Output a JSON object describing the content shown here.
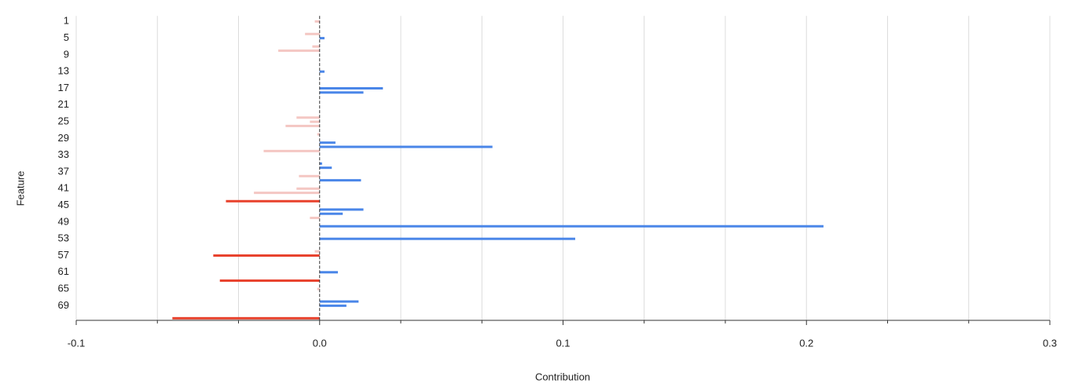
{
  "chart_data": {
    "type": "hbar",
    "x_label": "Contribution",
    "y_label": "Feature",
    "categories": [
      "1",
      null,
      null,
      null,
      "5",
      null,
      null,
      null,
      "9",
      null,
      null,
      null,
      "13",
      null,
      null,
      null,
      "17",
      null,
      null,
      null,
      "21",
      null,
      null,
      null,
      "25",
      null,
      null,
      null,
      "29",
      null,
      null,
      null,
      "33",
      null,
      null,
      null,
      "37",
      null,
      null,
      null,
      "41",
      null,
      null,
      null,
      "45",
      null,
      null,
      null,
      "49",
      null,
      null,
      null,
      "53",
      null,
      null,
      null,
      "57",
      null,
      null,
      null,
      "61",
      null,
      null,
      null,
      "65",
      null,
      null,
      null,
      "69",
      null,
      null,
      null
    ],
    "values": [
      -0.002,
      0,
      0,
      -0.006,
      0.002,
      0,
      -0.003,
      -0.017,
      0,
      0,
      0,
      0,
      0.002,
      0,
      0,
      0,
      0.026,
      0.018,
      0,
      0,
      0,
      0,
      0,
      -0.0095,
      -0.004,
      -0.014,
      0,
      -0.001,
      0,
      0.0065,
      0.071,
      -0.023,
      0,
      0,
      0.001,
      0.005,
      0,
      -0.0085,
      0.017,
      0,
      -0.0095,
      -0.027,
      0,
      -0.0385,
      0,
      0.018,
      0.0095,
      -0.004,
      0,
      0.207,
      0,
      0,
      0.105,
      0,
      0,
      -0.002,
      -0.0437,
      0,
      0,
      0,
      0.0075,
      0,
      -0.041,
      0,
      -0.001,
      0,
      0,
      0.016,
      0.011,
      0,
      0,
      -0.0605
    ],
    "colors": [
      "#f4c7c3",
      "#4a86e8",
      "#4a86e8",
      "#f4c7c3",
      "#4a86e8",
      "#4a86e8",
      "#f4c7c3",
      "#f4c7c3",
      "#4a86e8",
      "#4a86e8",
      "#4a86e8",
      "#4a86e8",
      "#4a86e8",
      "#4a86e8",
      "#4a86e8",
      "#4a86e8",
      "#4a86e8",
      "#4a86e8",
      "#4a86e8",
      "#4a86e8",
      "#4a86e8",
      "#4a86e8",
      "#4a86e8",
      "#f4c7c3",
      "#f4c7c3",
      "#f4c7c3",
      "#4a86e8",
      "#f4c7c3",
      "#4a86e8",
      "#4a86e8",
      "#4a86e8",
      "#f4c7c3",
      "#4a86e8",
      "#4a86e8",
      "#4a86e8",
      "#4a86e8",
      "#4a86e8",
      "#f4c7c3",
      "#4a86e8",
      "#4a86e8",
      "#f4c7c3",
      "#f4c7c3",
      "#4a86e8",
      "#e8412c",
      "#4a86e8",
      "#4a86e8",
      "#4a86e8",
      "#f4c7c3",
      "#4a86e8",
      "#4a86e8",
      "#4a86e8",
      "#4a86e8",
      "#4a86e8",
      "#4a86e8",
      "#4a86e8",
      "#f4c7c3",
      "#e8412c",
      "#4a86e8",
      "#4a86e8",
      "#4a86e8",
      "#4a86e8",
      "#4a86e8",
      "#e8412c",
      "#4a86e8",
      "#f4c7c3",
      "#4a86e8",
      "#4a86e8",
      "#4a86e8",
      "#4a86e8",
      "#4a86e8",
      "#4a86e8",
      "#e8412c"
    ],
    "xlim": [
      -0.1,
      0.3
    ],
    "xticks": [
      -0.1,
      {
        "value": 0,
        "label": "0.0"
      },
      0.1,
      0.2,
      0.3
    ],
    "grid": true,
    "minor_gridlines": 2
  }
}
